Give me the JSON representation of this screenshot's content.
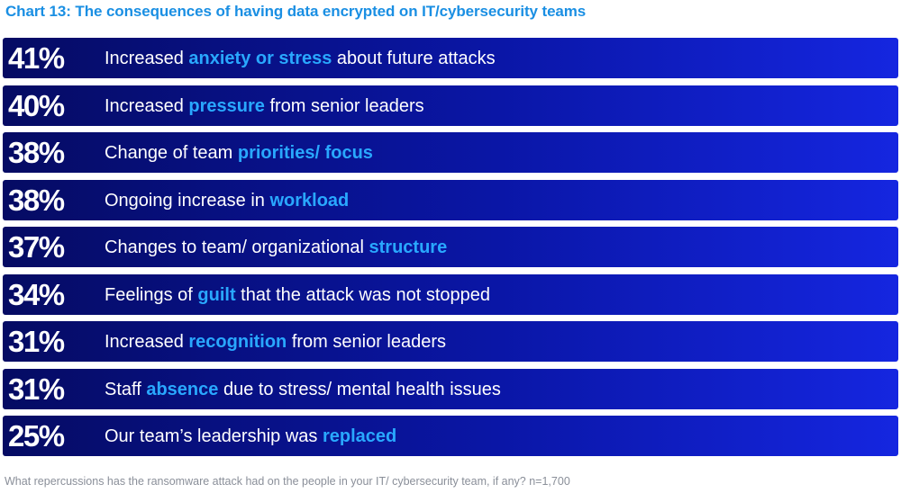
{
  "chart_data": {
    "type": "table",
    "title": "Chart 13: The consequences of having data encrypted on IT/cybersecurity teams",
    "footnote": "What repercussions has the ransomware attack had on the people in your IT/ cybersecurity team, if any? n=1,700",
    "rows": [
      {
        "percent_label": "41%",
        "value": 41,
        "before": "Increased ",
        "highlight": "anxiety or stress",
        "after": " about future attacks"
      },
      {
        "percent_label": "40%",
        "value": 40,
        "before": "Increased ",
        "highlight": "pressure",
        "after": " from senior leaders"
      },
      {
        "percent_label": "38%",
        "value": 38,
        "before": "Change of team ",
        "highlight": "priorities/ focus",
        "after": ""
      },
      {
        "percent_label": "38%",
        "value": 38,
        "before": "Ongoing increase in ",
        "highlight": "workload",
        "after": ""
      },
      {
        "percent_label": "37%",
        "value": 37,
        "before": "Changes to team/ organizational ",
        "highlight": "structure",
        "after": ""
      },
      {
        "percent_label": "34%",
        "value": 34,
        "before": "Feelings of ",
        "highlight": "guilt",
        "after": " that the attack was not stopped"
      },
      {
        "percent_label": "31%",
        "value": 31,
        "before": "Increased ",
        "highlight": "recognition",
        "after": " from senior leaders"
      },
      {
        "percent_label": "31%",
        "value": 31,
        "before": "Staff ",
        "highlight": "absence",
        "after": " due to stress/ mental health issues"
      },
      {
        "percent_label": "25%",
        "value": 25,
        "before": "Our team’s leadership was ",
        "highlight": "replaced",
        "after": ""
      }
    ],
    "colors": {
      "title": "#1a8fe3",
      "row_start": "#050b63",
      "row_end": "#1526e0",
      "highlight": "#29a8ff",
      "footnote": "#8a8f99"
    }
  }
}
